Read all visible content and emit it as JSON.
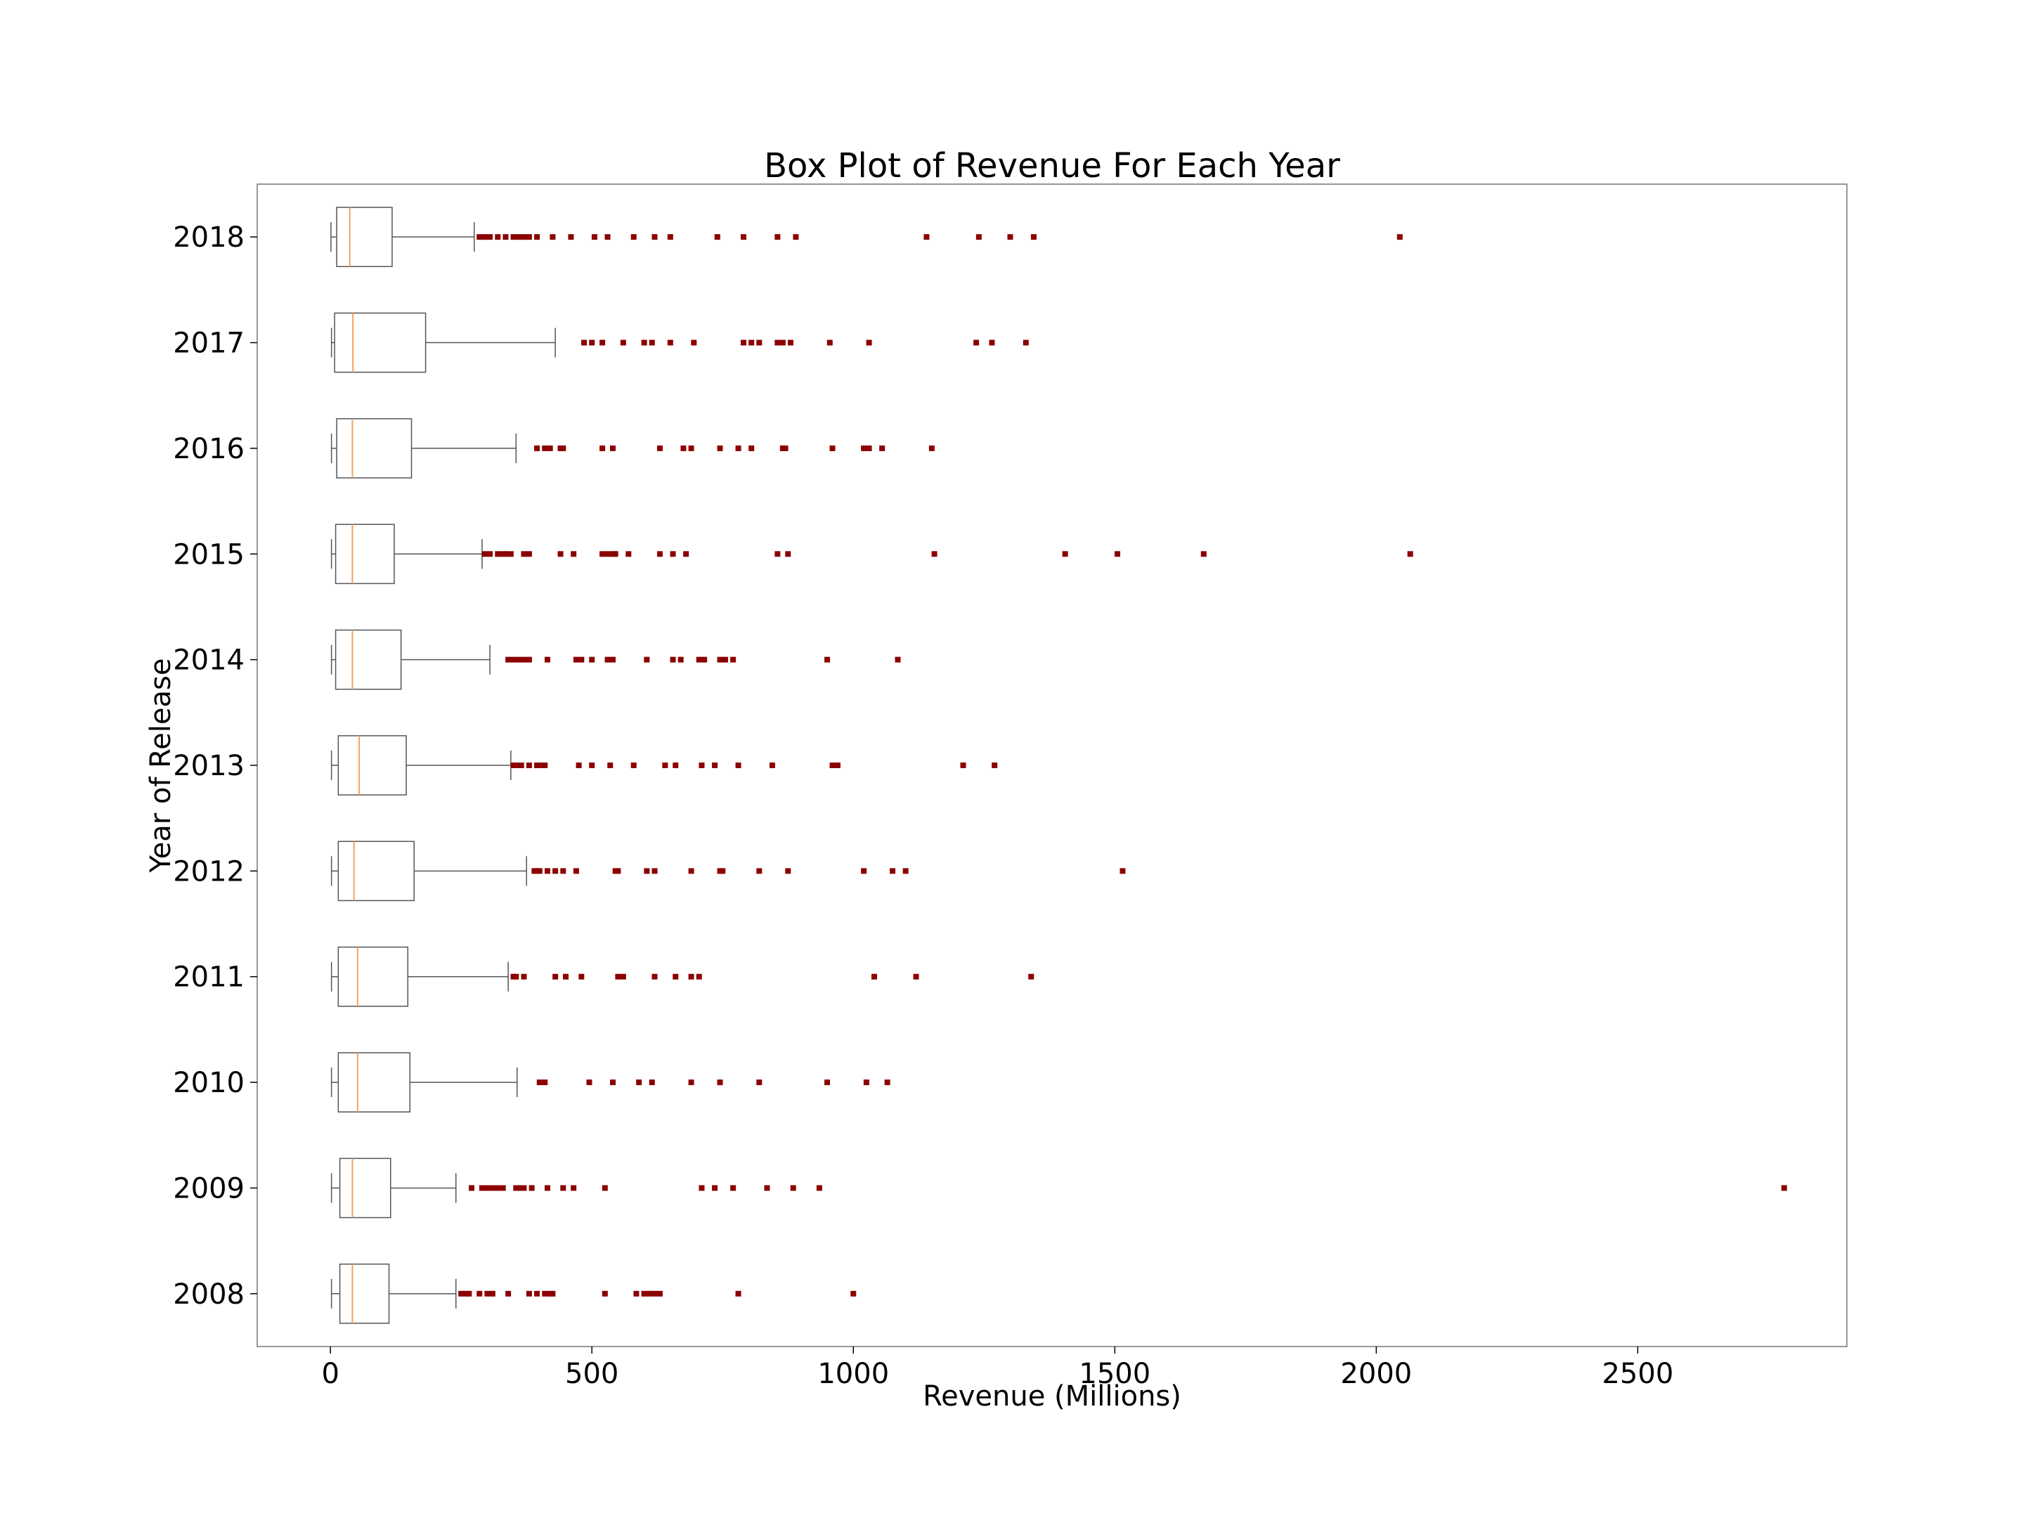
{
  "chart_data": {
    "type": "box",
    "title": "Box Plot of Revenue For Each Year",
    "xlabel": "Revenue (Millions)",
    "ylabel": "Year of Release",
    "xlim": [
      -140,
      2900
    ],
    "xticks": [
      0,
      500,
      1000,
      1500,
      2000,
      2500
    ],
    "grid": false,
    "colors": {
      "box": "#555555",
      "median": "#f5a25d",
      "outlier": "#8b0000",
      "frame": "#777777"
    },
    "categories": [
      "2018",
      "2017",
      "2016",
      "2015",
      "2014",
      "2013",
      "2012",
      "2011",
      "2010",
      "2009",
      "2008"
    ],
    "series": [
      {
        "category": "2018",
        "whisker_low": 1,
        "q1": 12,
        "median": 37,
        "q3": 118,
        "whisker_high": 275,
        "outliers": [
          285,
          295,
          305,
          320,
          335,
          350,
          360,
          370,
          380,
          395,
          425,
          460,
          505,
          530,
          580,
          620,
          650,
          740,
          790,
          855,
          890,
          1140,
          1240,
          1300,
          1345,
          2045
        ]
      },
      {
        "category": "2017",
        "whisker_low": 2,
        "q1": 8,
        "median": 43,
        "q3": 182,
        "whisker_high": 430,
        "outliers": [
          485,
          500,
          520,
          560,
          600,
          615,
          650,
          695,
          790,
          805,
          820,
          855,
          865,
          880,
          955,
          1030,
          1235,
          1265,
          1330
        ]
      },
      {
        "category": "2016",
        "whisker_low": 2,
        "q1": 12,
        "median": 42,
        "q3": 155,
        "whisker_high": 355,
        "outliers": [
          395,
          410,
          420,
          440,
          445,
          520,
          540,
          630,
          675,
          690,
          745,
          780,
          805,
          865,
          870,
          960,
          1020,
          1030,
          1055,
          1150
        ]
      },
      {
        "category": "2015",
        "whisker_low": 2,
        "q1": 10,
        "median": 42,
        "q3": 122,
        "whisker_high": 290,
        "outliers": [
          295,
          305,
          320,
          330,
          335,
          345,
          370,
          380,
          440,
          465,
          520,
          530,
          540,
          545,
          570,
          630,
          655,
          680,
          855,
          875,
          1155,
          1405,
          1505,
          1670,
          2065
        ]
      },
      {
        "category": "2014",
        "whisker_low": 2,
        "q1": 10,
        "median": 42,
        "q3": 135,
        "whisker_high": 305,
        "outliers": [
          340,
          350,
          360,
          370,
          380,
          415,
          470,
          480,
          500,
          530,
          540,
          605,
          655,
          670,
          705,
          715,
          745,
          755,
          770,
          950,
          1085
        ]
      },
      {
        "category": "2013",
        "whisker_low": 2,
        "q1": 15,
        "median": 55,
        "q3": 145,
        "whisker_high": 345,
        "outliers": [
          350,
          355,
          365,
          380,
          395,
          400,
          410,
          475,
          500,
          535,
          580,
          640,
          660,
          710,
          735,
          780,
          845,
          960,
          970,
          1210,
          1270
        ]
      },
      {
        "category": "2012",
        "whisker_low": 2,
        "q1": 15,
        "median": 45,
        "q3": 160,
        "whisker_high": 375,
        "outliers": [
          390,
          395,
          400,
          415,
          430,
          445,
          470,
          545,
          550,
          605,
          620,
          690,
          745,
          750,
          820,
          875,
          1020,
          1075,
          1100,
          1515
        ]
      },
      {
        "category": "2011",
        "whisker_low": 2,
        "q1": 15,
        "median": 52,
        "q3": 148,
        "whisker_high": 340,
        "outliers": [
          350,
          355,
          370,
          430,
          450,
          480,
          550,
          560,
          620,
          660,
          690,
          705,
          1040,
          1120,
          1340
        ]
      },
      {
        "category": "2010",
        "whisker_low": 2,
        "q1": 15,
        "median": 52,
        "q3": 152,
        "whisker_high": 357,
        "outliers": [
          400,
          410,
          495,
          540,
          590,
          615,
          690,
          745,
          820,
          950,
          1025,
          1065
        ]
      },
      {
        "category": "2009",
        "whisker_low": 2,
        "q1": 18,
        "median": 42,
        "q3": 115,
        "whisker_high": 240,
        "outliers": [
          270,
          290,
          300,
          310,
          320,
          330,
          355,
          365,
          370,
          385,
          415,
          445,
          465,
          525,
          710,
          735,
          770,
          835,
          885,
          935,
          2780
        ]
      },
      {
        "category": "2008",
        "whisker_low": 2,
        "q1": 18,
        "median": 42,
        "q3": 112,
        "whisker_high": 240,
        "outliers": [
          250,
          260,
          265,
          285,
          300,
          310,
          340,
          380,
          395,
          410,
          420,
          425,
          525,
          585,
          600,
          610,
          620,
          630,
          780,
          1000
        ]
      }
    ]
  }
}
